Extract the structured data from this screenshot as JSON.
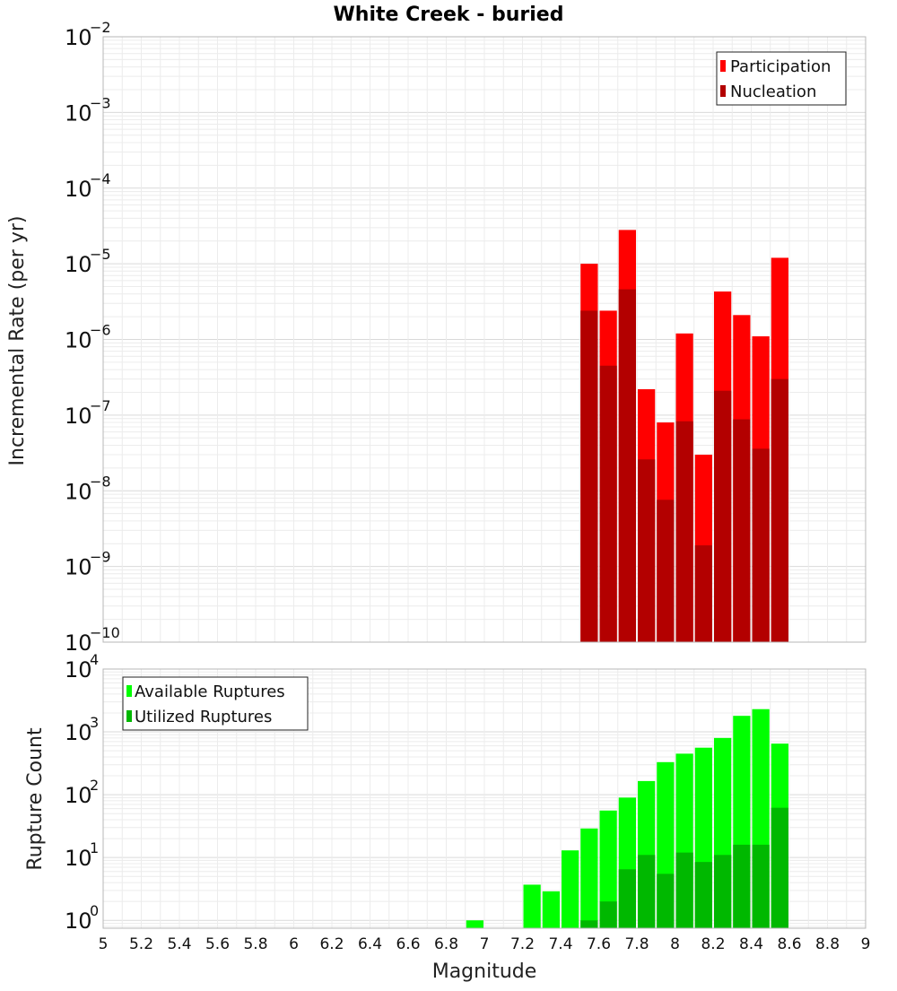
{
  "chart_data": [
    {
      "type": "bar",
      "title": "White Creek - buried",
      "xlabel": "",
      "ylabel": "Incremental Rate (per yr)",
      "xlim": [
        5,
        9
      ],
      "ylim": [
        1e-10,
        0.01
      ],
      "yscale": "log",
      "grid": true,
      "legend_position": "top-right",
      "bar_width": 0.1,
      "x": [
        7.55,
        7.65,
        7.75,
        7.85,
        7.95,
        8.05,
        8.15,
        8.25,
        8.35,
        8.45,
        8.55
      ],
      "series": [
        {
          "name": "Participation",
          "color": "#ff0000",
          "values": [
            1e-05,
            2.4e-06,
            2.8e-05,
            2.2e-07,
            8e-08,
            1.2e-06,
            3e-08,
            4.3e-06,
            2.1e-06,
            1.1e-06,
            1.2e-05
          ]
        },
        {
          "name": "Nucleation",
          "color": "#b30000",
          "values": [
            2.4e-06,
            4.5e-07,
            4.6e-06,
            2.6e-08,
            7.6e-09,
            8.3e-08,
            1.9e-09,
            2.1e-07,
            8.8e-08,
            3.6e-08,
            3e-07
          ]
        }
      ]
    },
    {
      "type": "bar",
      "title": "",
      "xlabel": "Magnitude",
      "ylabel": "Rupture Count",
      "xlim": [
        5,
        9
      ],
      "ylim": [
        0.75,
        10000
      ],
      "yscale": "log",
      "grid": true,
      "legend_position": "top-left",
      "bar_width": 0.1,
      "x_ticks": [
        "5",
        "5.2",
        "5.4",
        "5.6",
        "5.8",
        "6",
        "6.2",
        "6.4",
        "6.6",
        "6.8",
        "7",
        "7.2",
        "7.4",
        "7.6",
        "7.8",
        "8",
        "8.2",
        "8.4",
        "8.6",
        "8.8",
        "9"
      ],
      "x": [
        6.95,
        7.25,
        7.35,
        7.45,
        7.55,
        7.65,
        7.75,
        7.85,
        7.95,
        8.05,
        8.15,
        8.25,
        8.35,
        8.45,
        8.55
      ],
      "series": [
        {
          "name": "Available Ruptures",
          "color": "#00ff00",
          "values": [
            1,
            3.7,
            2.9,
            13,
            29,
            56,
            90,
            165,
            330,
            450,
            560,
            800,
            1800,
            2300,
            650
          ]
        },
        {
          "name": "Utilized Ruptures",
          "color": "#00b800",
          "values": [
            0,
            0,
            0,
            0,
            1,
            2,
            6.5,
            11,
            5.5,
            12,
            8.5,
            11,
            16,
            16,
            62
          ]
        }
      ]
    }
  ]
}
